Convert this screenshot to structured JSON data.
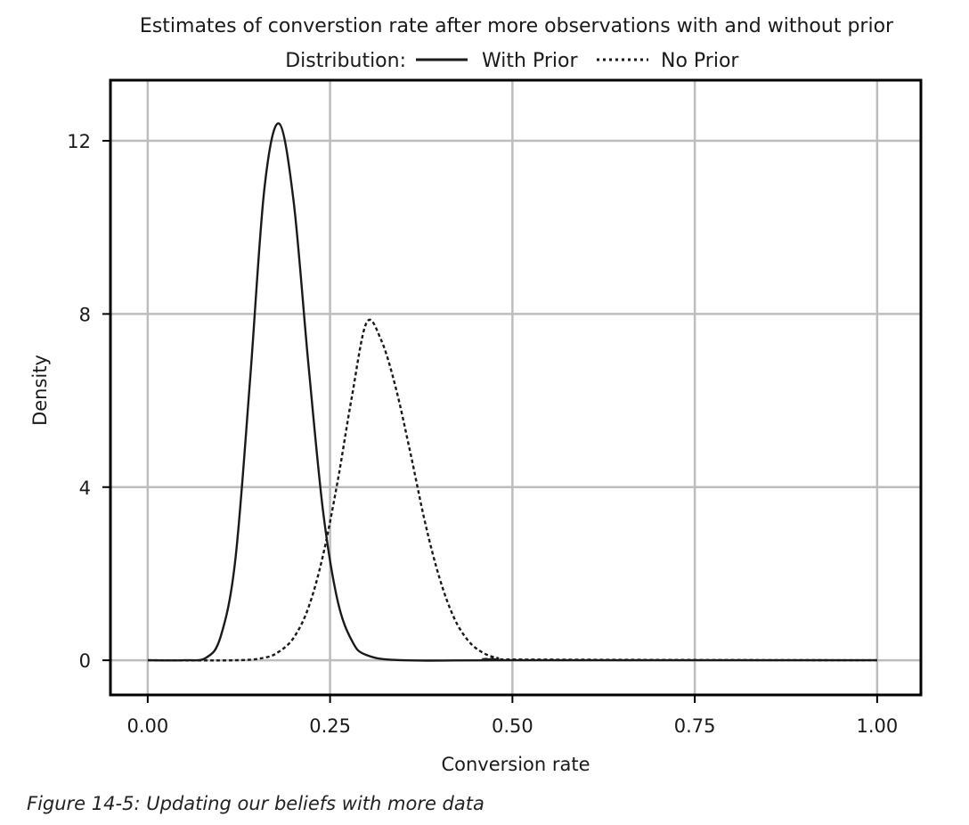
{
  "chart_data": {
    "type": "line",
    "title": "Estimates of converstion rate after more observations with and without prior",
    "legend_title": "Distribution:",
    "legend_position": "top",
    "xlabel": "Conversion rate",
    "ylabel": "Density",
    "xlim": [
      0,
      1
    ],
    "ylim": [
      -0.8,
      13.4
    ],
    "xticks": [
      0,
      0.25,
      0.5,
      0.75,
      1
    ],
    "xtick_labels": [
      "0.00",
      "0.25",
      "0.50",
      "0.75",
      "1.00"
    ],
    "yticks": [
      0,
      4,
      8,
      12
    ],
    "ytick_labels": [
      "0",
      "4",
      "8",
      "12"
    ],
    "grid": true,
    "series": [
      {
        "name": "With Prior",
        "style": "solid",
        "color": "#1a1a1a",
        "x": [
          0.0,
          0.05,
          0.08,
          0.1,
          0.12,
          0.14,
          0.16,
          0.18,
          0.2,
          0.22,
          0.24,
          0.26,
          0.28,
          0.3,
          0.35,
          0.5,
          1.0
        ],
        "y": [
          0.0,
          0.0,
          0.06,
          0.55,
          2.3,
          6.4,
          10.9,
          12.4,
          10.6,
          6.9,
          3.5,
          1.4,
          0.45,
          0.12,
          0.0,
          0.0,
          0.0
        ]
      },
      {
        "name": "No Prior",
        "style": "dotted",
        "color": "#1a1a1a",
        "x": [
          0.0,
          0.12,
          0.16,
          0.18,
          0.2,
          0.22,
          0.24,
          0.26,
          0.28,
          0.3,
          0.32,
          0.34,
          0.36,
          0.38,
          0.4,
          0.42,
          0.44,
          0.46,
          0.48,
          0.5,
          1.0
        ],
        "y": [
          0.0,
          0.0,
          0.06,
          0.2,
          0.52,
          1.2,
          2.4,
          4.1,
          6.1,
          7.8,
          7.4,
          6.3,
          4.8,
          3.2,
          1.9,
          0.98,
          0.44,
          0.17,
          0.05,
          0.02,
          0.0
        ]
      }
    ]
  },
  "caption": "Figure 14-5: Updating our beliefs with more data"
}
